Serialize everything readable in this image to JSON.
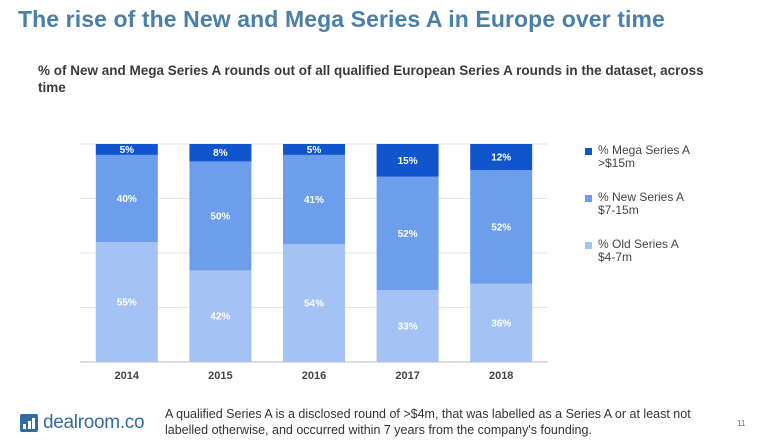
{
  "slide_title": "The rise of the New and Mega Series A in Europe over time",
  "chart_data": {
    "type": "bar",
    "stacked": true,
    "title": "% of New and Mega Series A rounds out of all qualified European Series A rounds in the dataset, across time",
    "xlabel": "",
    "ylabel": "",
    "ylim": [
      0,
      100
    ],
    "grid": true,
    "legend_position": "right",
    "categories": [
      "2014",
      "2015",
      "2016",
      "2017",
      "2018"
    ],
    "series": [
      {
        "name": "% Old Series A $4-7m",
        "name_lines": [
          "% Old Series A",
          "$4-7m"
        ],
        "color": "#a4c2f4",
        "values": [
          55,
          42,
          54,
          33,
          36
        ],
        "labels": [
          "55%",
          "42%",
          "54%",
          "33%",
          "36%"
        ]
      },
      {
        "name": "% New Series A $7-15m",
        "name_lines": [
          "% New Series A",
          "$7-15m"
        ],
        "color": "#6d9eeb",
        "values": [
          40,
          50,
          41,
          52,
          52
        ],
        "labels": [
          "40%",
          "50%",
          "41%",
          "52%",
          "52%"
        ]
      },
      {
        "name": "% Mega Series A >$15m",
        "name_lines": [
          "% Mega Series A",
          ">$15m"
        ],
        "color": "#1155cc",
        "values": [
          5,
          8,
          5,
          15,
          12
        ],
        "labels": [
          "5%",
          "8%",
          "5%",
          "15%",
          "12%"
        ]
      }
    ]
  },
  "footer": {
    "logo_text": "dealroom.co",
    "footnote": "A qualified Series A is a disclosed round of >$4m, that was labelled as a Series A or at least not labelled otherwise, and occurred within 7 years from the company's founding.",
    "page_number": "11"
  }
}
